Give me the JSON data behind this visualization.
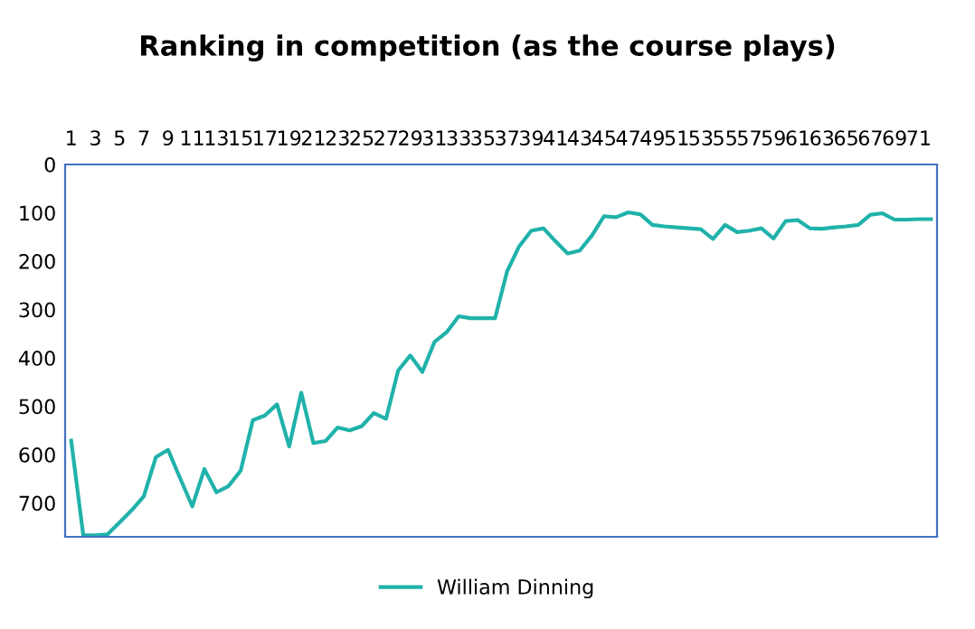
{
  "chart_data": {
    "type": "line",
    "title": "Ranking in competition (as the course plays)",
    "categories": [
      "1",
      null,
      "3",
      null,
      "5",
      null,
      "7",
      null,
      "9",
      null,
      "11",
      null,
      "13",
      null,
      "15",
      null,
      "17",
      null,
      "19",
      null,
      "21",
      null,
      "23",
      null,
      "25",
      null,
      "27",
      null,
      "29",
      null,
      "31",
      null,
      "33",
      null,
      "35",
      null,
      "37",
      null,
      "39",
      null,
      "41",
      null,
      "43",
      null,
      "45",
      null,
      "47",
      null,
      "49",
      null,
      "51",
      null,
      "53",
      null,
      "55",
      null,
      "57",
      null,
      "59",
      null,
      "61",
      null,
      "63",
      null,
      "65",
      null,
      "67",
      null,
      "69",
      null,
      "71",
      null
    ],
    "series": [
      {
        "name": "William Dinning",
        "color": "#20b2aa",
        "values": [
          571,
          767,
          767,
          765,
          740,
          715,
          686,
          605,
          590,
          649,
          707,
          630,
          678,
          665,
          633,
          529,
          519,
          496,
          583,
          472,
          576,
          572,
          544,
          550,
          541,
          514,
          526,
          426,
          395,
          429,
          367,
          347,
          314,
          318,
          318,
          318,
          221,
          169,
          137,
          132,
          159,
          184,
          178,
          147,
          107,
          109,
          99,
          103,
          125,
          128,
          130,
          132,
          134,
          154,
          125,
          140,
          137,
          132,
          153,
          117,
          115,
          132,
          133,
          130,
          128,
          125,
          104,
          101,
          114,
          114,
          113,
          113
        ]
      }
    ],
    "ylim": [
      770,
      0
    ],
    "yticks": [
      0,
      100,
      200,
      300,
      400,
      500,
      600,
      700
    ],
    "grid": false,
    "legend": "bottom",
    "marker": "none",
    "line_style": "solid"
  }
}
